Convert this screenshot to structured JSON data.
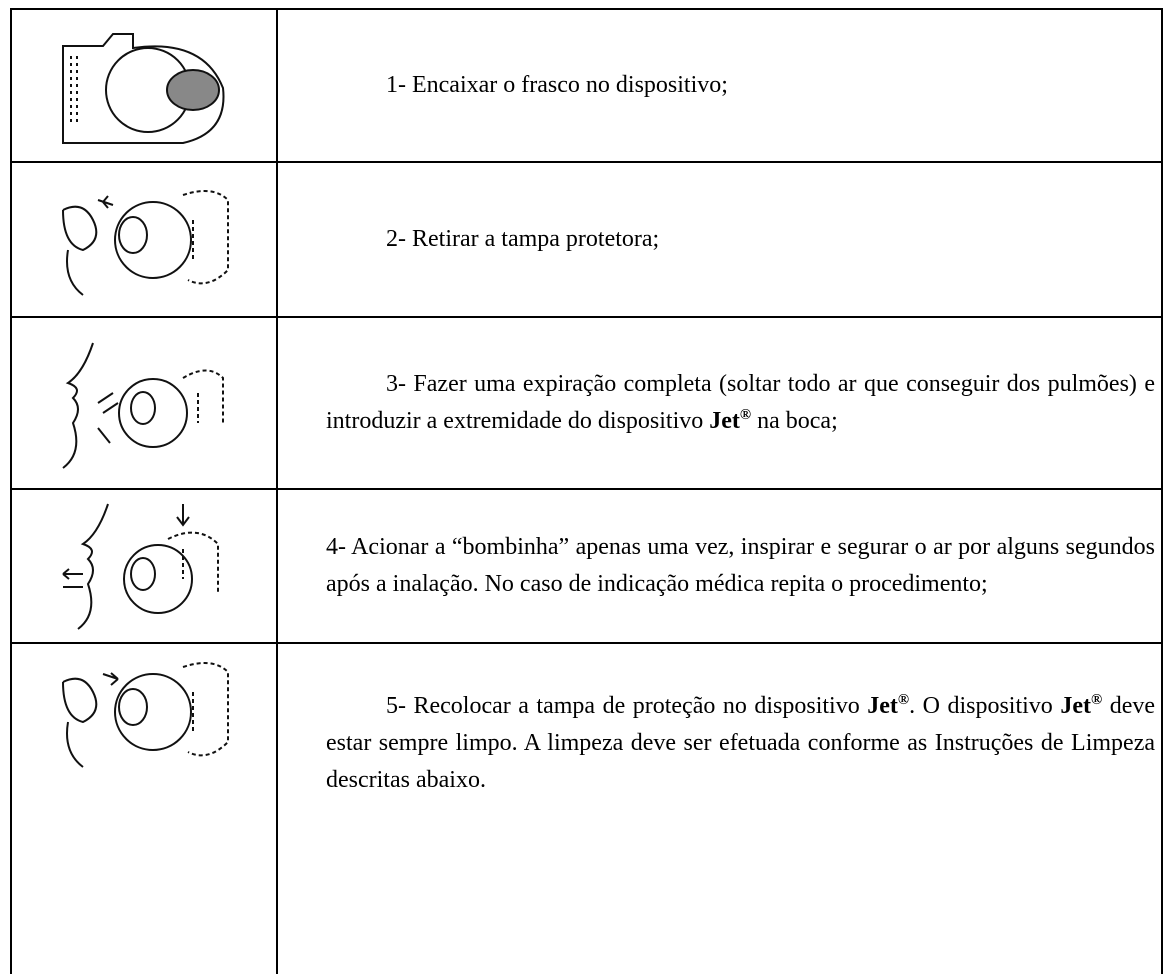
{
  "table": {
    "rows": [
      {
        "text": [
          "1- Encaixar o frasco no dispositivo;"
        ]
      },
      {
        "text": [
          "2- Retirar a tampa protetora;"
        ]
      },
      {
        "text": [
          "3- Fazer uma expiração completa (soltar todo ar que conseguir dos pulmões) e introduzir a extremidade do dispositivo ",
          "Jet",
          "®",
          " na boca;"
        ]
      },
      {
        "text": [
          "4- Acionar a “bombinha” apenas uma vez, inspirar e segurar o ar por alguns segundos após a inalação. No caso de indicação médica repita o procedimento;"
        ]
      },
      {
        "text": [
          "5- Recolocar a tampa de proteção no dispositivo ",
          "Jet",
          "®",
          ". O dispositivo ",
          "Jet",
          "®",
          " deve estar sempre limpo. A limpeza deve ser efetuada conforme as Instruções de Limpeza descritas abaixo."
        ]
      }
    ]
  }
}
